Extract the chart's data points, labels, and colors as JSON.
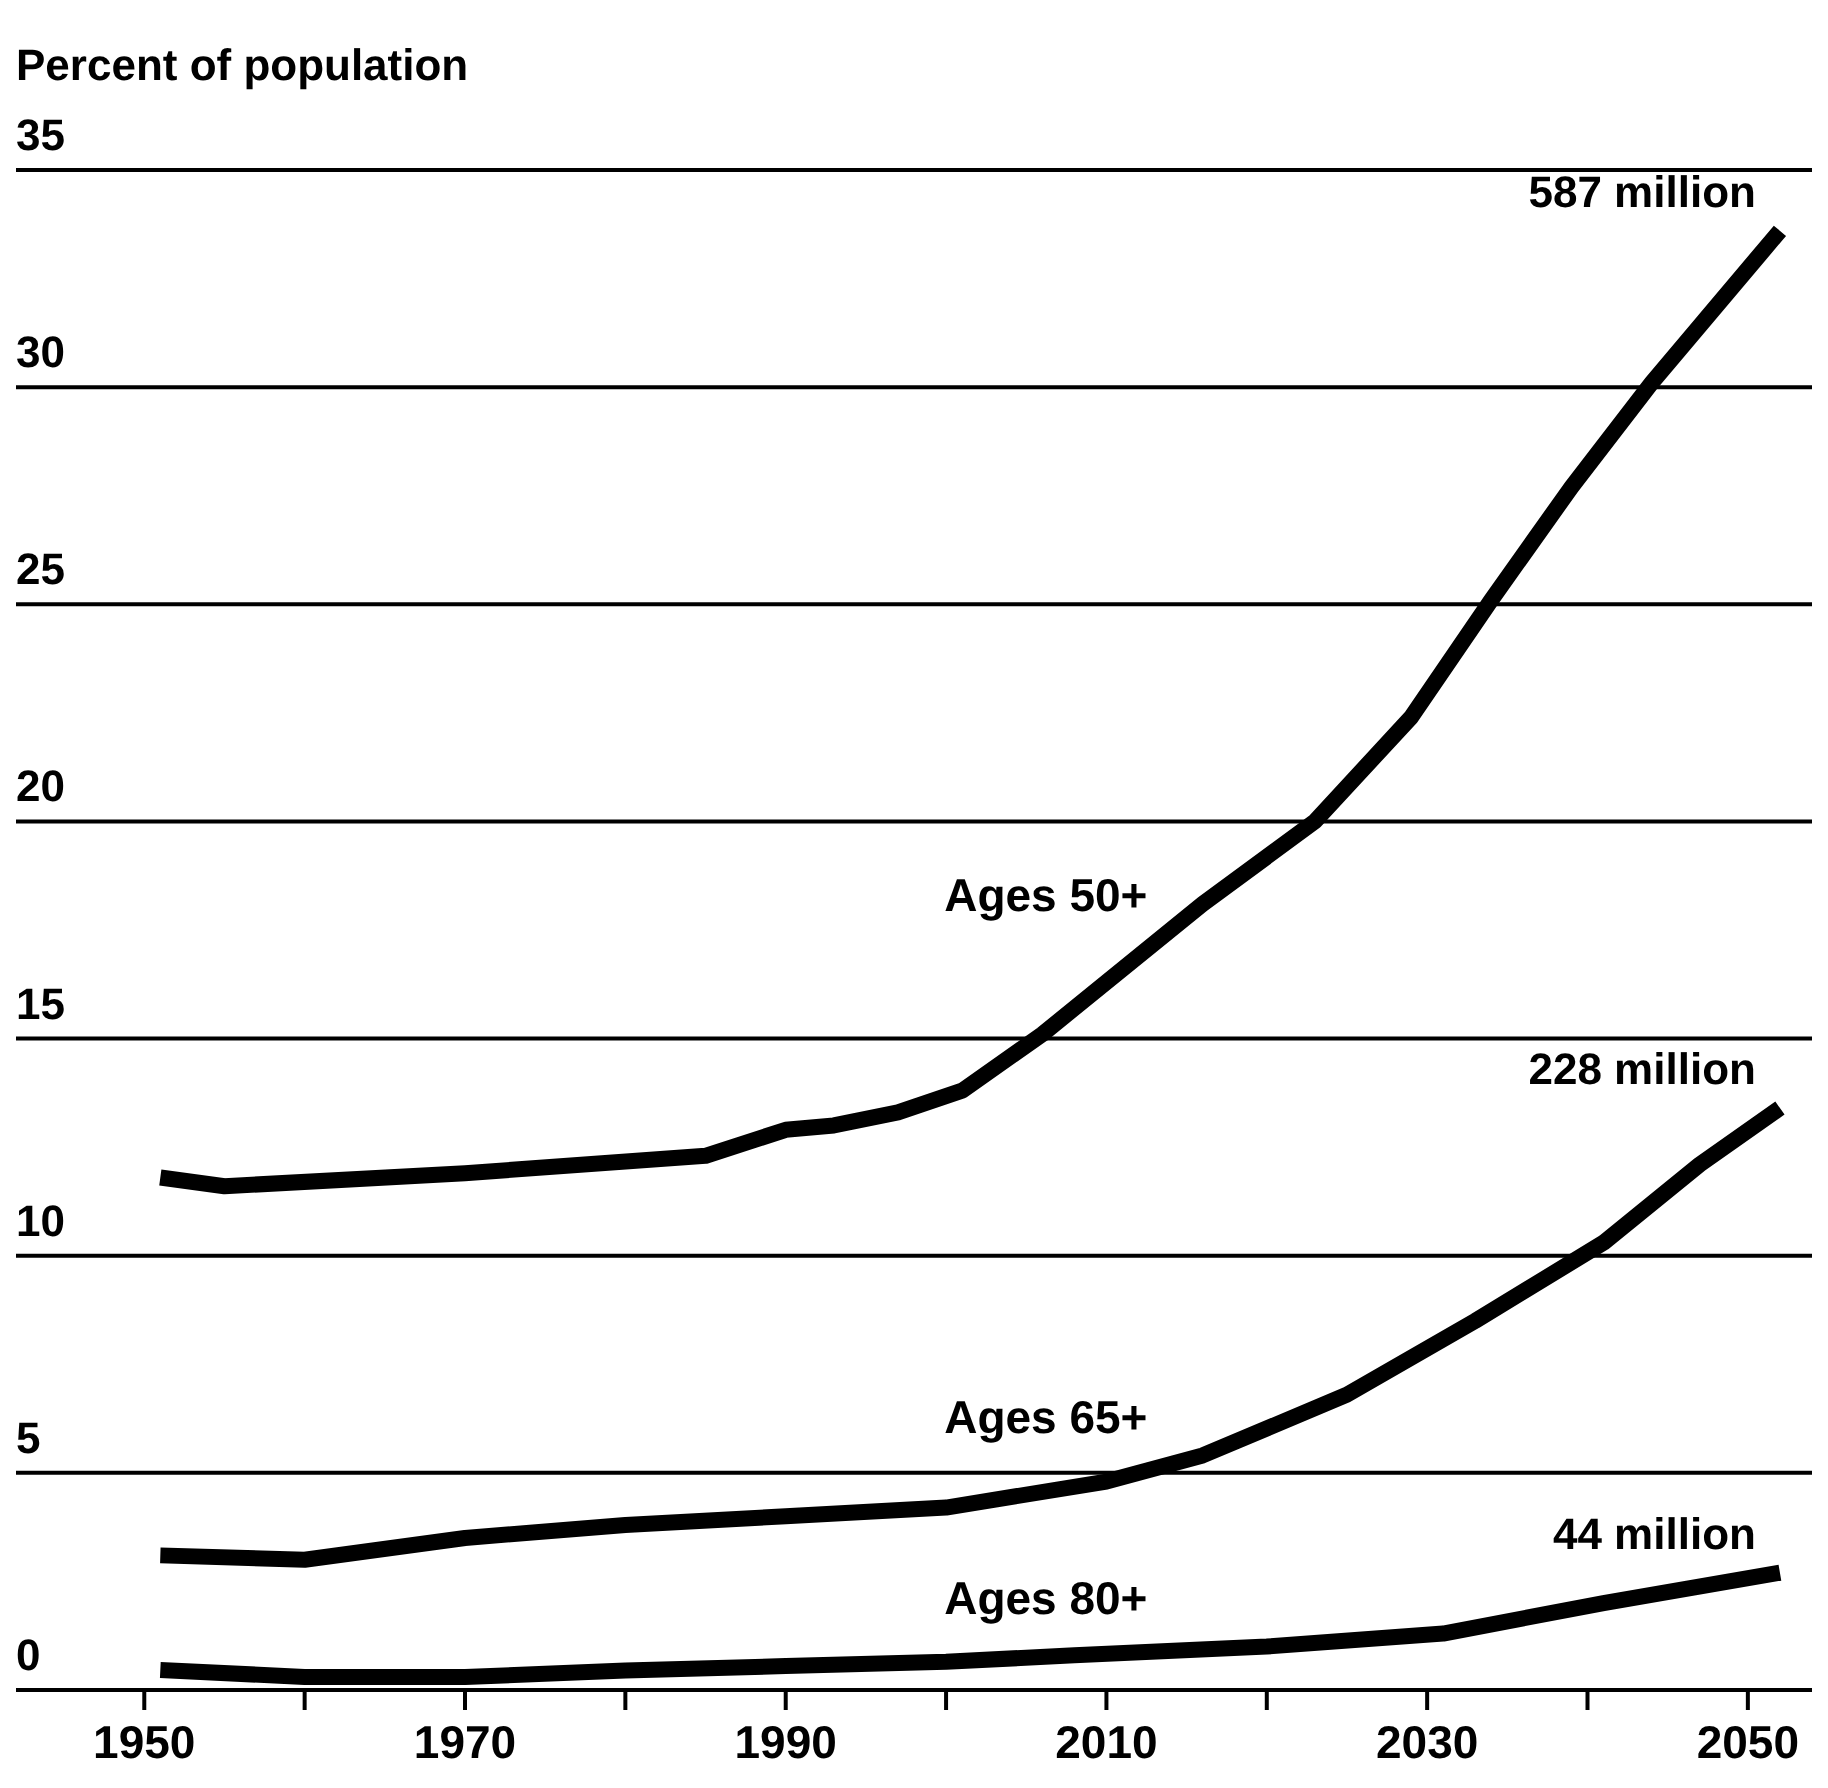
{
  "chart_data": {
    "type": "line",
    "ylabel": "Percent of population",
    "xlim": [
      1942,
      2054
    ],
    "ylim": [
      0,
      35
    ],
    "xticks": [
      1950,
      {
        "value": 1960,
        "label": null
      },
      1970,
      {
        "value": 1980,
        "label": null
      },
      1990,
      {
        "value": 2000,
        "label": null
      },
      2010,
      {
        "value": 2020,
        "label": null
      },
      2030,
      {
        "value": 2040,
        "label": null
      },
      2050
    ],
    "yticks": [
      0,
      5,
      10,
      15,
      20,
      25,
      30,
      35
    ],
    "grid": "y",
    "line_style": "solid",
    "marker": "none",
    "series": [
      {
        "name": "Ages 50+",
        "color": "#000000",
        "x": [
          1951,
          1955,
          1970,
          1985,
          1990,
          1993,
          1997,
          2001,
          2006,
          2016,
          2023,
          2029,
          2034,
          2039,
          2044,
          2052
        ],
        "values": [
          11.8,
          11.6,
          11.9,
          12.3,
          12.9,
          13.0,
          13.3,
          13.8,
          15.1,
          18.1,
          20.0,
          22.4,
          25.1,
          27.7,
          30.1,
          33.6
        ]
      },
      {
        "name": "Ages 65+",
        "color": "#000000",
        "x": [
          1951,
          1960,
          1970,
          1980,
          1990,
          2000,
          2010,
          2016,
          2025,
          2033,
          2041,
          2047,
          2052
        ],
        "values": [
          3.1,
          3.0,
          3.5,
          3.8,
          4.0,
          4.2,
          4.8,
          5.4,
          6.8,
          8.5,
          10.3,
          12.1,
          13.4
        ]
      },
      {
        "name": "Ages 80+",
        "color": "#000000",
        "x": [
          1951,
          1960,
          1970,
          1980,
          1990,
          2000,
          2008,
          2020,
          2031,
          2041,
          2052
        ],
        "values": [
          0.46,
          0.3,
          0.3,
          0.45,
          0.55,
          0.65,
          0.8,
          1.0,
          1.3,
          2.0,
          2.7
        ]
      }
    ],
    "annotations": [
      "587 million",
      "228 million",
      "44 million"
    ]
  }
}
